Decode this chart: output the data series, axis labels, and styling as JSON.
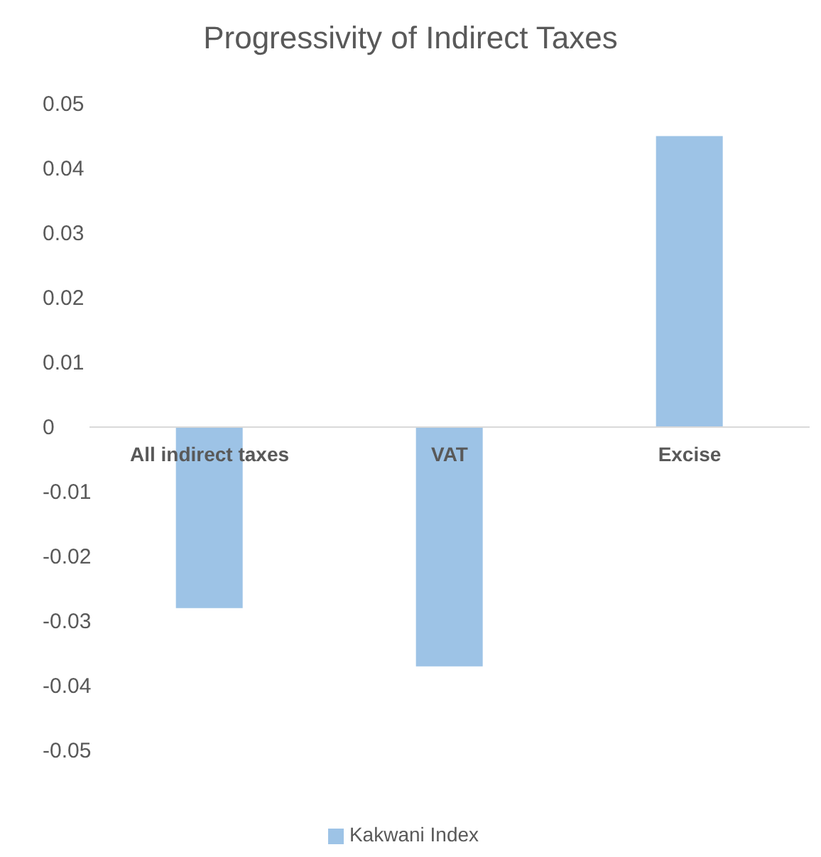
{
  "chart_data": {
    "type": "bar",
    "title": "Progressivity of Indirect Taxes",
    "categories": [
      "All indirect taxes",
      "VAT",
      "Excise"
    ],
    "series": [
      {
        "name": "Kakwani Index",
        "color": "#9dc3e6",
        "values": [
          -0.028,
          -0.037,
          0.045
        ]
      }
    ],
    "ylim": [
      -0.05,
      0.05
    ],
    "yticks": [
      -0.05,
      -0.04,
      -0.03,
      -0.02,
      -0.01,
      0,
      0.01,
      0.02,
      0.03,
      0.04,
      0.05
    ],
    "legend": "bottom"
  }
}
